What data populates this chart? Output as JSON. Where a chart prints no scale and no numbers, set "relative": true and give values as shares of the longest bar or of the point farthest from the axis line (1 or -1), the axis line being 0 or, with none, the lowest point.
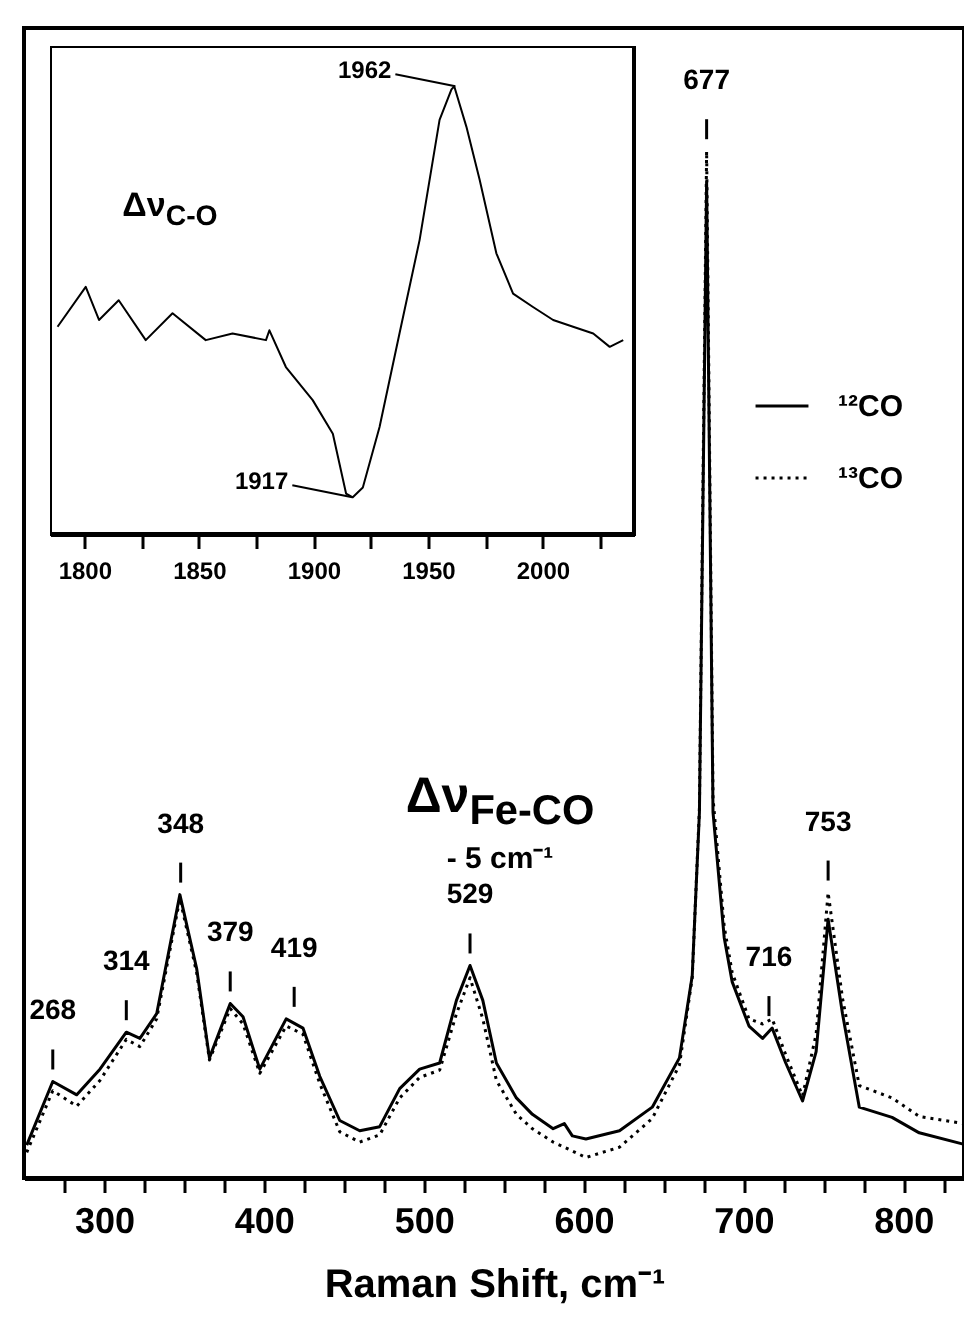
{
  "chart_data": [
    {
      "type": "line",
      "relative": true,
      "xlabel": "Raman Shift, cm⁻¹",
      "xlim": [
        250,
        838
      ],
      "xticks": [
        {
          "value": 275,
          "label": null
        },
        300,
        {
          "value": 325,
          "label": null
        },
        {
          "value": 350,
          "label": null
        },
        {
          "value": 375,
          "label": null
        },
        400,
        {
          "value": 425,
          "label": null
        },
        {
          "value": 450,
          "label": null
        },
        {
          "value": 475,
          "label": null
        },
        500,
        {
          "value": 525,
          "label": null
        },
        {
          "value": 550,
          "label": null
        },
        {
          "value": 575,
          "label": null
        },
        600,
        {
          "value": 625,
          "label": null
        },
        {
          "value": 650,
          "label": null
        },
        {
          "value": 675,
          "label": null
        },
        700,
        {
          "value": 725,
          "label": null
        },
        {
          "value": 750,
          "label": null
        },
        {
          "value": 775,
          "label": null
        },
        800,
        {
          "value": 825,
          "label": null
        }
      ],
      "legend": "right",
      "series": [
        {
          "name": "¹²CO",
          "color": "#000000",
          "line_style": "solid",
          "x": [
            251.7,
            268,
            283,
            297.5,
            314,
            322.5,
            333,
            347.5,
            358,
            366,
            379,
            387,
            397.5,
            414,
            424.5,
            435,
            447.5,
            460,
            472.5,
            485,
            497.5,
            510,
            520.5,
            529,
            537,
            545.5,
            558,
            568,
            581,
            588,
            593,
            601.5,
            622.5,
            643,
            660,
            668,
            672.5,
            677,
            681,
            688,
            693,
            703.5,
            712,
            718,
            726.5,
            737,
            745.5,
            753,
            762,
            772.5,
            793,
            810,
            837.5
          ],
          "values": [
            0.032,
            0.094,
            0.081,
            0.106,
            0.142,
            0.136,
            0.16,
            0.276,
            0.204,
            0.117,
            0.17,
            0.157,
            0.106,
            0.155,
            0.146,
            0.099,
            0.056,
            0.046,
            0.05,
            0.087,
            0.106,
            0.112,
            0.173,
            0.207,
            0.173,
            0.112,
            0.078,
            0.062,
            0.048,
            0.053,
            0.041,
            0.038,
            0.046,
            0.069,
            0.117,
            0.197,
            0.356,
            0.97,
            0.356,
            0.234,
            0.191,
            0.148,
            0.136,
            0.146,
            0.112,
            0.075,
            0.123,
            0.252,
            0.16,
            0.069,
            0.059,
            0.044,
            0.033
          ]
        },
        {
          "name": "¹³CO",
          "color": "#000000",
          "line_style": "dotted",
          "x": [
            251.7,
            268,
            283,
            297.5,
            314,
            322.5,
            333,
            347.5,
            358,
            366,
            379,
            387,
            397.5,
            414,
            424.5,
            435,
            447.5,
            460,
            472.5,
            485,
            497.5,
            510,
            520.5,
            529,
            537,
            545.5,
            558,
            568,
            581,
            588,
            601.5,
            622.5,
            643,
            660,
            668,
            672.5,
            677,
            681,
            688,
            693,
            703.5,
            712,
            718,
            726.5,
            737,
            745.5,
            753,
            762,
            772.5,
            793,
            810,
            837.5
          ],
          "values": [
            0.025,
            0.085,
            0.07,
            0.095,
            0.135,
            0.128,
            0.155,
            0.272,
            0.2,
            0.115,
            0.165,
            0.15,
            0.102,
            0.148,
            0.14,
            0.092,
            0.045,
            0.035,
            0.042,
            0.078,
            0.098,
            0.105,
            0.16,
            0.195,
            0.155,
            0.095,
            0.062,
            0.048,
            0.035,
            0.03,
            0.02,
            0.03,
            0.058,
            0.11,
            0.195,
            0.36,
            1.0,
            0.37,
            0.245,
            0.2,
            0.155,
            0.15,
            0.155,
            0.12,
            0.08,
            0.14,
            0.278,
            0.175,
            0.09,
            0.078,
            0.06,
            0.053
          ]
        }
      ],
      "annotations": [
        "Δν$_{Fe-CO}$",
        "- 5 cm⁻¹",
        {
          "text": "268",
          "x": 268,
          "y": 0.094
        },
        {
          "text": "314",
          "x": 314,
          "y": 0.142
        },
        {
          "text": "348",
          "x": 348,
          "y": 0.276
        },
        {
          "text": "379",
          "x": 379,
          "y": 0.17
        },
        {
          "text": "419",
          "x": 419,
          "y": 0.155
        },
        {
          "text": "529",
          "x": 529,
          "y": 0.207
        },
        {
          "text": "677",
          "x": 677,
          "y": 1.0
        },
        {
          "text": "716",
          "x": 716,
          "y": 0.146
        },
        {
          "text": "753",
          "x": 753,
          "y": 0.278
        }
      ]
    },
    {
      "type": "line",
      "relative": true,
      "xlim": [
        1785,
        2040
      ],
      "xticks": [
        1800,
        {
          "value": 1825,
          "label": null
        },
        1850,
        {
          "value": 1875,
          "label": null
        },
        1900,
        {
          "value": 1925,
          "label": null
        },
        1950,
        {
          "value": 1975,
          "label": null
        },
        2000,
        {
          "value": 2025,
          "label": null
        }
      ],
      "series": [
        {
          "color": "#000000",
          "x": [
            1788.3,
            1800.6,
            1806.4,
            1815,
            1826.8,
            1838.5,
            1853,
            1864.7,
            1879.3,
            1880.8,
            1888,
            1899.7,
            1908.5,
            1914.3,
            1917.2,
            1921.6,
            1928.9,
            1937.6,
            1946.4,
            1955.1,
            1960.3,
            1961.5,
            1966.8,
            1972.6,
            1979.9,
            1987.2,
            1995.9,
            2004.7,
            2013.4,
            2022.2,
            2029.4,
            2035.3
          ],
          "values": [
            0.463,
            0.552,
            0.478,
            0.522,
            0.433,
            0.493,
            0.433,
            0.448,
            0.433,
            0.455,
            0.373,
            0.299,
            0.224,
            0.09,
            0.082,
            0.104,
            0.239,
            0.448,
            0.657,
            0.925,
            0.993,
            1.0,
            0.91,
            0.791,
            0.627,
            0.537,
            0.507,
            0.478,
            0.463,
            0.448,
            0.418,
            0.433
          ]
        }
      ],
      "annotations": [
        "Δν$_{C-O}$",
        {
          "text": "1962",
          "x": 1962,
          "y": 1.0
        },
        {
          "text": "1917",
          "x": 1917,
          "y": 0.082
        }
      ]
    }
  ]
}
